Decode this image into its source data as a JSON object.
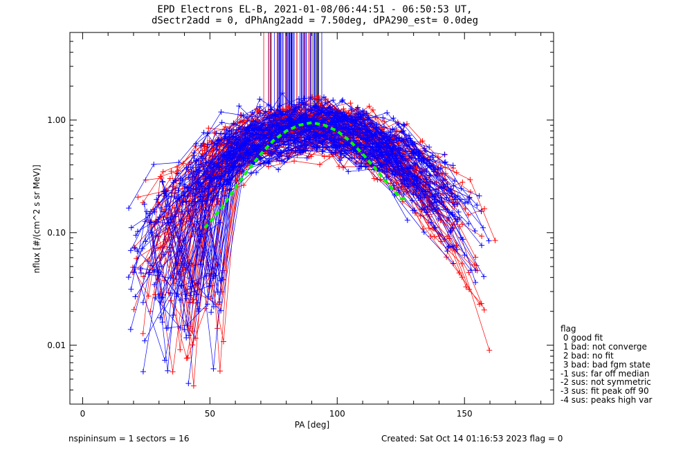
{
  "chart_data": {
    "type": "line",
    "title": "EPD Electrons EL-B, 2021-01-08/06:44:51 - 06:50:53 UT,",
    "subtitle": "dSectr2add = 0, dPhAng2add = 7.50deg, dPA290_est=    0.0deg",
    "xlabel": "PA [deg]",
    "ylabel": "nflux [#/(cm^2 s sr MeV)]",
    "xlim": [
      -5,
      185
    ],
    "ylim": [
      0.003,
      6
    ],
    "yscale": "log",
    "x_ticks": [
      0,
      50,
      100,
      150
    ],
    "x_tick_labels": [
      "0",
      "50",
      "100",
      "150"
    ],
    "y_ticks": [
      0.01,
      0.1,
      1.0
    ],
    "y_tick_labels": [
      "0.01",
      "0.10",
      "1.00"
    ],
    "series": [
      {
        "color": "#ff0000",
        "marker": "+",
        "count": 90
      },
      {
        "color": "#0000ff",
        "marker": "+",
        "count": 90
      },
      {
        "color": "#00ff00",
        "style": "dashed",
        "x": [
          48,
          55,
          60,
          65,
          70,
          75,
          80,
          85,
          90,
          95,
          100,
          105,
          110,
          115,
          120,
          125,
          128
        ],
        "y": [
          0.11,
          0.17,
          0.25,
          0.36,
          0.5,
          0.66,
          0.8,
          0.9,
          0.95,
          0.9,
          0.8,
          0.65,
          0.5,
          0.37,
          0.27,
          0.2,
          0.2
        ]
      }
    ],
    "legend": {
      "title": "flag",
      "entries": [
        " 0 good fit",
        " 1 bad: not converge",
        " 2 bad: no fit",
        " 3 bad: bad fgm state",
        "-1 sus: far off median",
        "-2 sus: not symmetric",
        "-3 sus: fit peak off 90",
        "-4 sus: peaks high var"
      ],
      "placement": "right"
    },
    "grid": false
  },
  "footer": {
    "left": "nspininsum =  1  sectors = 16",
    "right": "Created: Sat Oct 14 01:16:53 2023   flag = 0"
  },
  "colors": {
    "red": "#ff0000",
    "blue": "#0000ff",
    "green": "#00ff00"
  }
}
